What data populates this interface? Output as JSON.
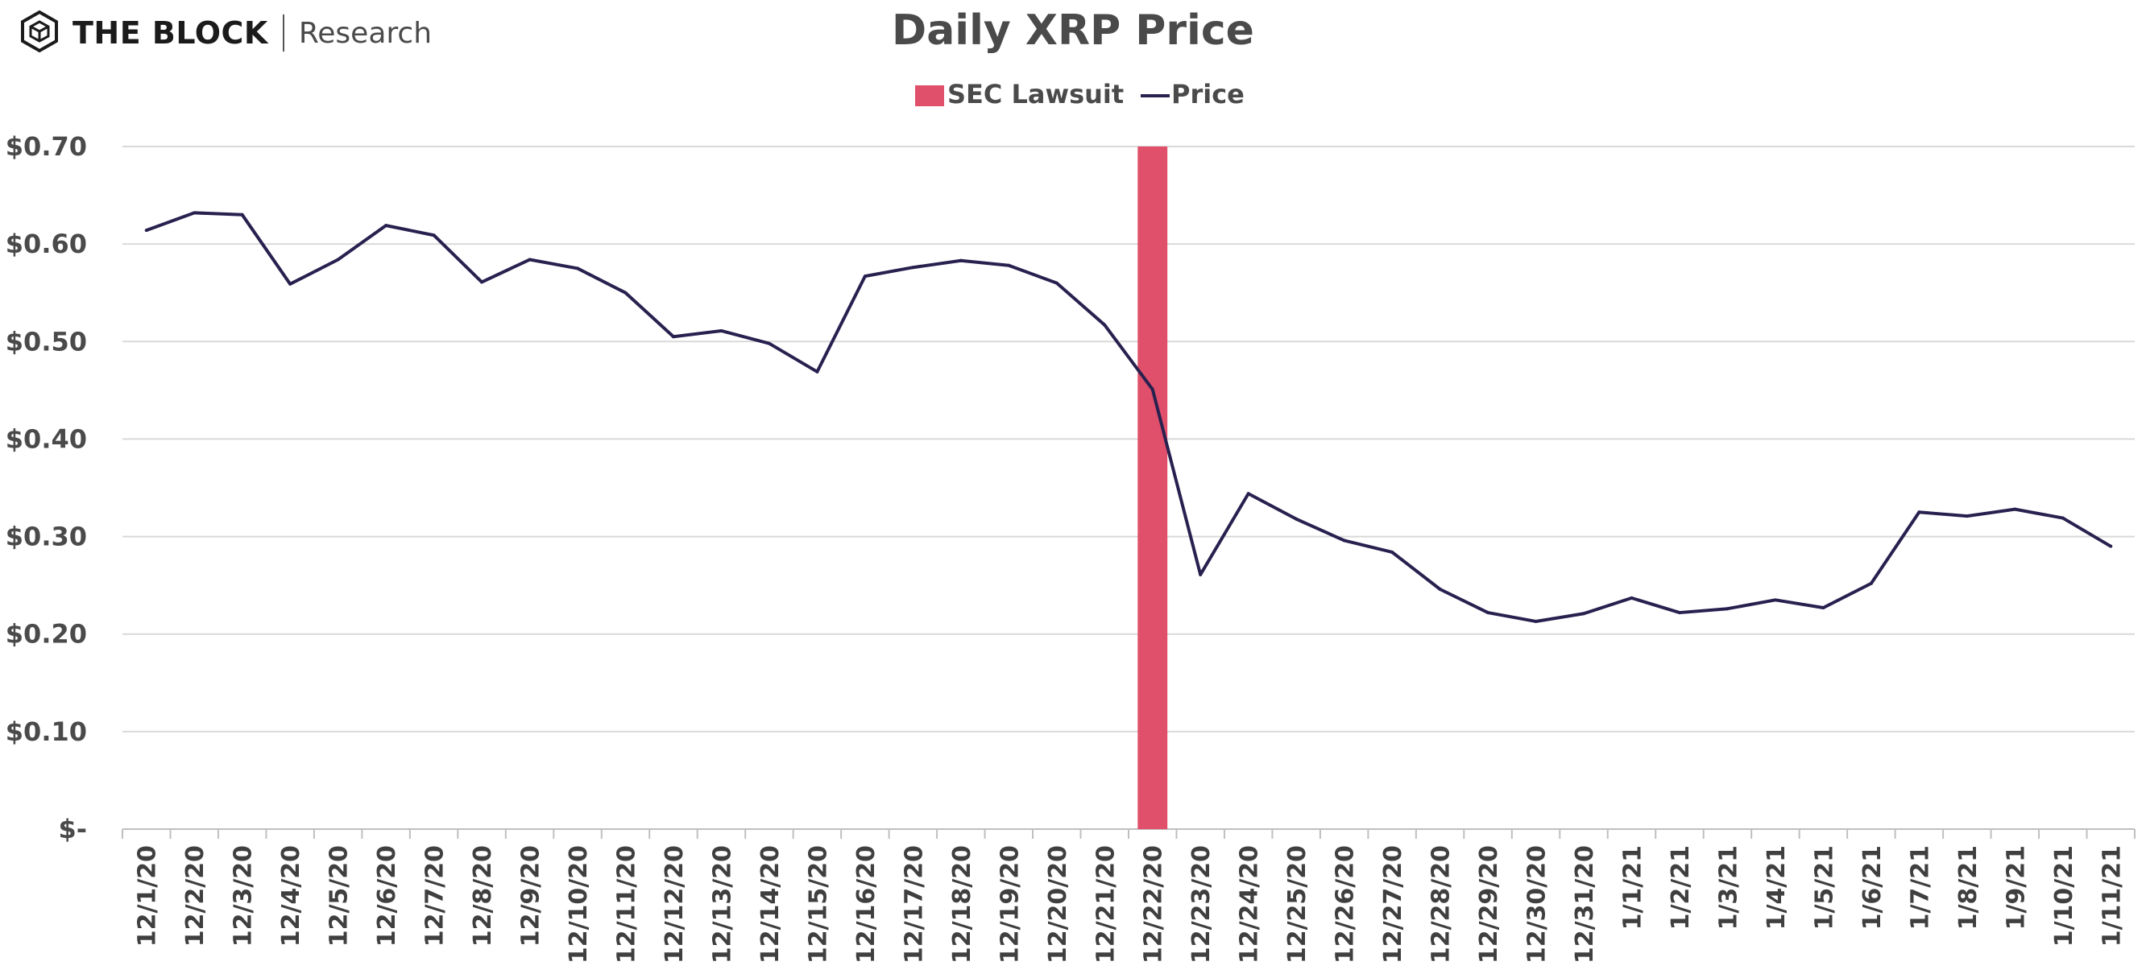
{
  "brand": {
    "name": "THE BLOCK",
    "sub": "Research",
    "icon": "cube-logo-icon"
  },
  "colors": {
    "price_line": "#28214f",
    "lawsuit_bar": "#e0506a",
    "grid": "#d9d9d9",
    "axis": "#bfbfbf",
    "text": "#4a4a4a"
  },
  "chart_data": {
    "type": "line",
    "title": "Daily XRP Price",
    "xlabel": "",
    "ylabel": "",
    "ylim": [
      0,
      0.7
    ],
    "yticks": [
      0,
      0.1,
      0.2,
      0.3,
      0.4,
      0.5,
      0.6,
      0.7
    ],
    "ytick_labels": [
      "$-",
      "$0.10",
      "$0.20",
      "$0.30",
      "$0.40",
      "$0.50",
      "$0.60",
      "$0.70"
    ],
    "grid": "horizontal",
    "legend_position": "top-center",
    "legend": [
      {
        "label": "SEC Lawsuit",
        "kind": "bar"
      },
      {
        "label": "Price",
        "kind": "line"
      }
    ],
    "categories": [
      "12/1/20",
      "12/2/20",
      "12/3/20",
      "12/4/20",
      "12/5/20",
      "12/6/20",
      "12/7/20",
      "12/8/20",
      "12/9/20",
      "12/10/20",
      "12/11/20",
      "12/12/20",
      "12/13/20",
      "12/14/20",
      "12/15/20",
      "12/16/20",
      "12/17/20",
      "12/18/20",
      "12/19/20",
      "12/20/20",
      "12/21/20",
      "12/22/20",
      "12/23/20",
      "12/24/20",
      "12/25/20",
      "12/26/20",
      "12/27/20",
      "12/28/20",
      "12/29/20",
      "12/30/20",
      "12/31/20",
      "1/1/21",
      "1/2/21",
      "1/3/21",
      "1/4/21",
      "1/5/21",
      "1/6/21",
      "1/7/21",
      "1/8/21",
      "1/9/21",
      "1/10/21",
      "1/11/21"
    ],
    "series": [
      {
        "name": "Price",
        "type": "line",
        "values": [
          0.614,
          0.632,
          0.63,
          0.559,
          0.584,
          0.619,
          0.609,
          0.561,
          0.584,
          0.575,
          0.55,
          0.505,
          0.511,
          0.498,
          0.469,
          0.567,
          0.576,
          0.583,
          0.578,
          0.56,
          0.517,
          0.451,
          0.261,
          0.344,
          0.318,
          0.296,
          0.284,
          0.246,
          0.222,
          0.213,
          0.221,
          0.237,
          0.222,
          0.226,
          0.235,
          0.227,
          0.252,
          0.325,
          0.321,
          0.328,
          0.319,
          0.29
        ]
      },
      {
        "name": "SEC Lawsuit",
        "type": "bar",
        "values": [
          null,
          null,
          null,
          null,
          null,
          null,
          null,
          null,
          null,
          null,
          null,
          null,
          null,
          null,
          null,
          null,
          null,
          null,
          null,
          null,
          null,
          0.7,
          null,
          null,
          null,
          null,
          null,
          null,
          null,
          null,
          null,
          null,
          null,
          null,
          null,
          null,
          null,
          null,
          null,
          null,
          null,
          null
        ]
      }
    ]
  }
}
